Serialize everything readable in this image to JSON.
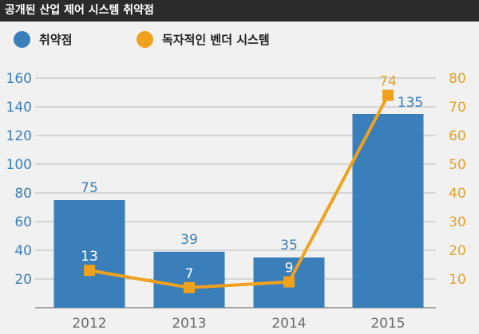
{
  "title": "공개된 산업 제어 시스템 취약점",
  "colors": {
    "bar": "#3a7fb9",
    "line": "#f0a21e",
    "left_axis_text": "#3a7fb9",
    "right_axis_text": "#e3a228",
    "x_axis_text": "#6b6b6b",
    "gridline": "#b7b7b7"
  },
  "chart_data": {
    "type": "bar",
    "categories": [
      "2012",
      "2013",
      "2014",
      "2015"
    ],
    "series": [
      {
        "name": "취약점",
        "type": "bar",
        "axis": "left",
        "values": [
          75,
          39,
          35,
          135
        ],
        "data_labels": [
          "75",
          "39",
          "35",
          "135"
        ]
      },
      {
        "name": "독자적인 벤더 시스템",
        "type": "line",
        "axis": "right",
        "values": [
          13,
          7,
          9,
          74
        ],
        "data_labels": [
          "13",
          "7",
          "9",
          "74"
        ]
      }
    ],
    "y_left": {
      "range": [
        0,
        160
      ],
      "ticks": [
        "20",
        "40",
        "60",
        "80",
        "100",
        "120",
        "140",
        "160"
      ]
    },
    "y_right": {
      "range": [
        0,
        80
      ],
      "ticks": [
        "10",
        "20",
        "30",
        "40",
        "50",
        "60",
        "70",
        "80"
      ]
    },
    "grid": true,
    "legend_position": "top-left"
  }
}
